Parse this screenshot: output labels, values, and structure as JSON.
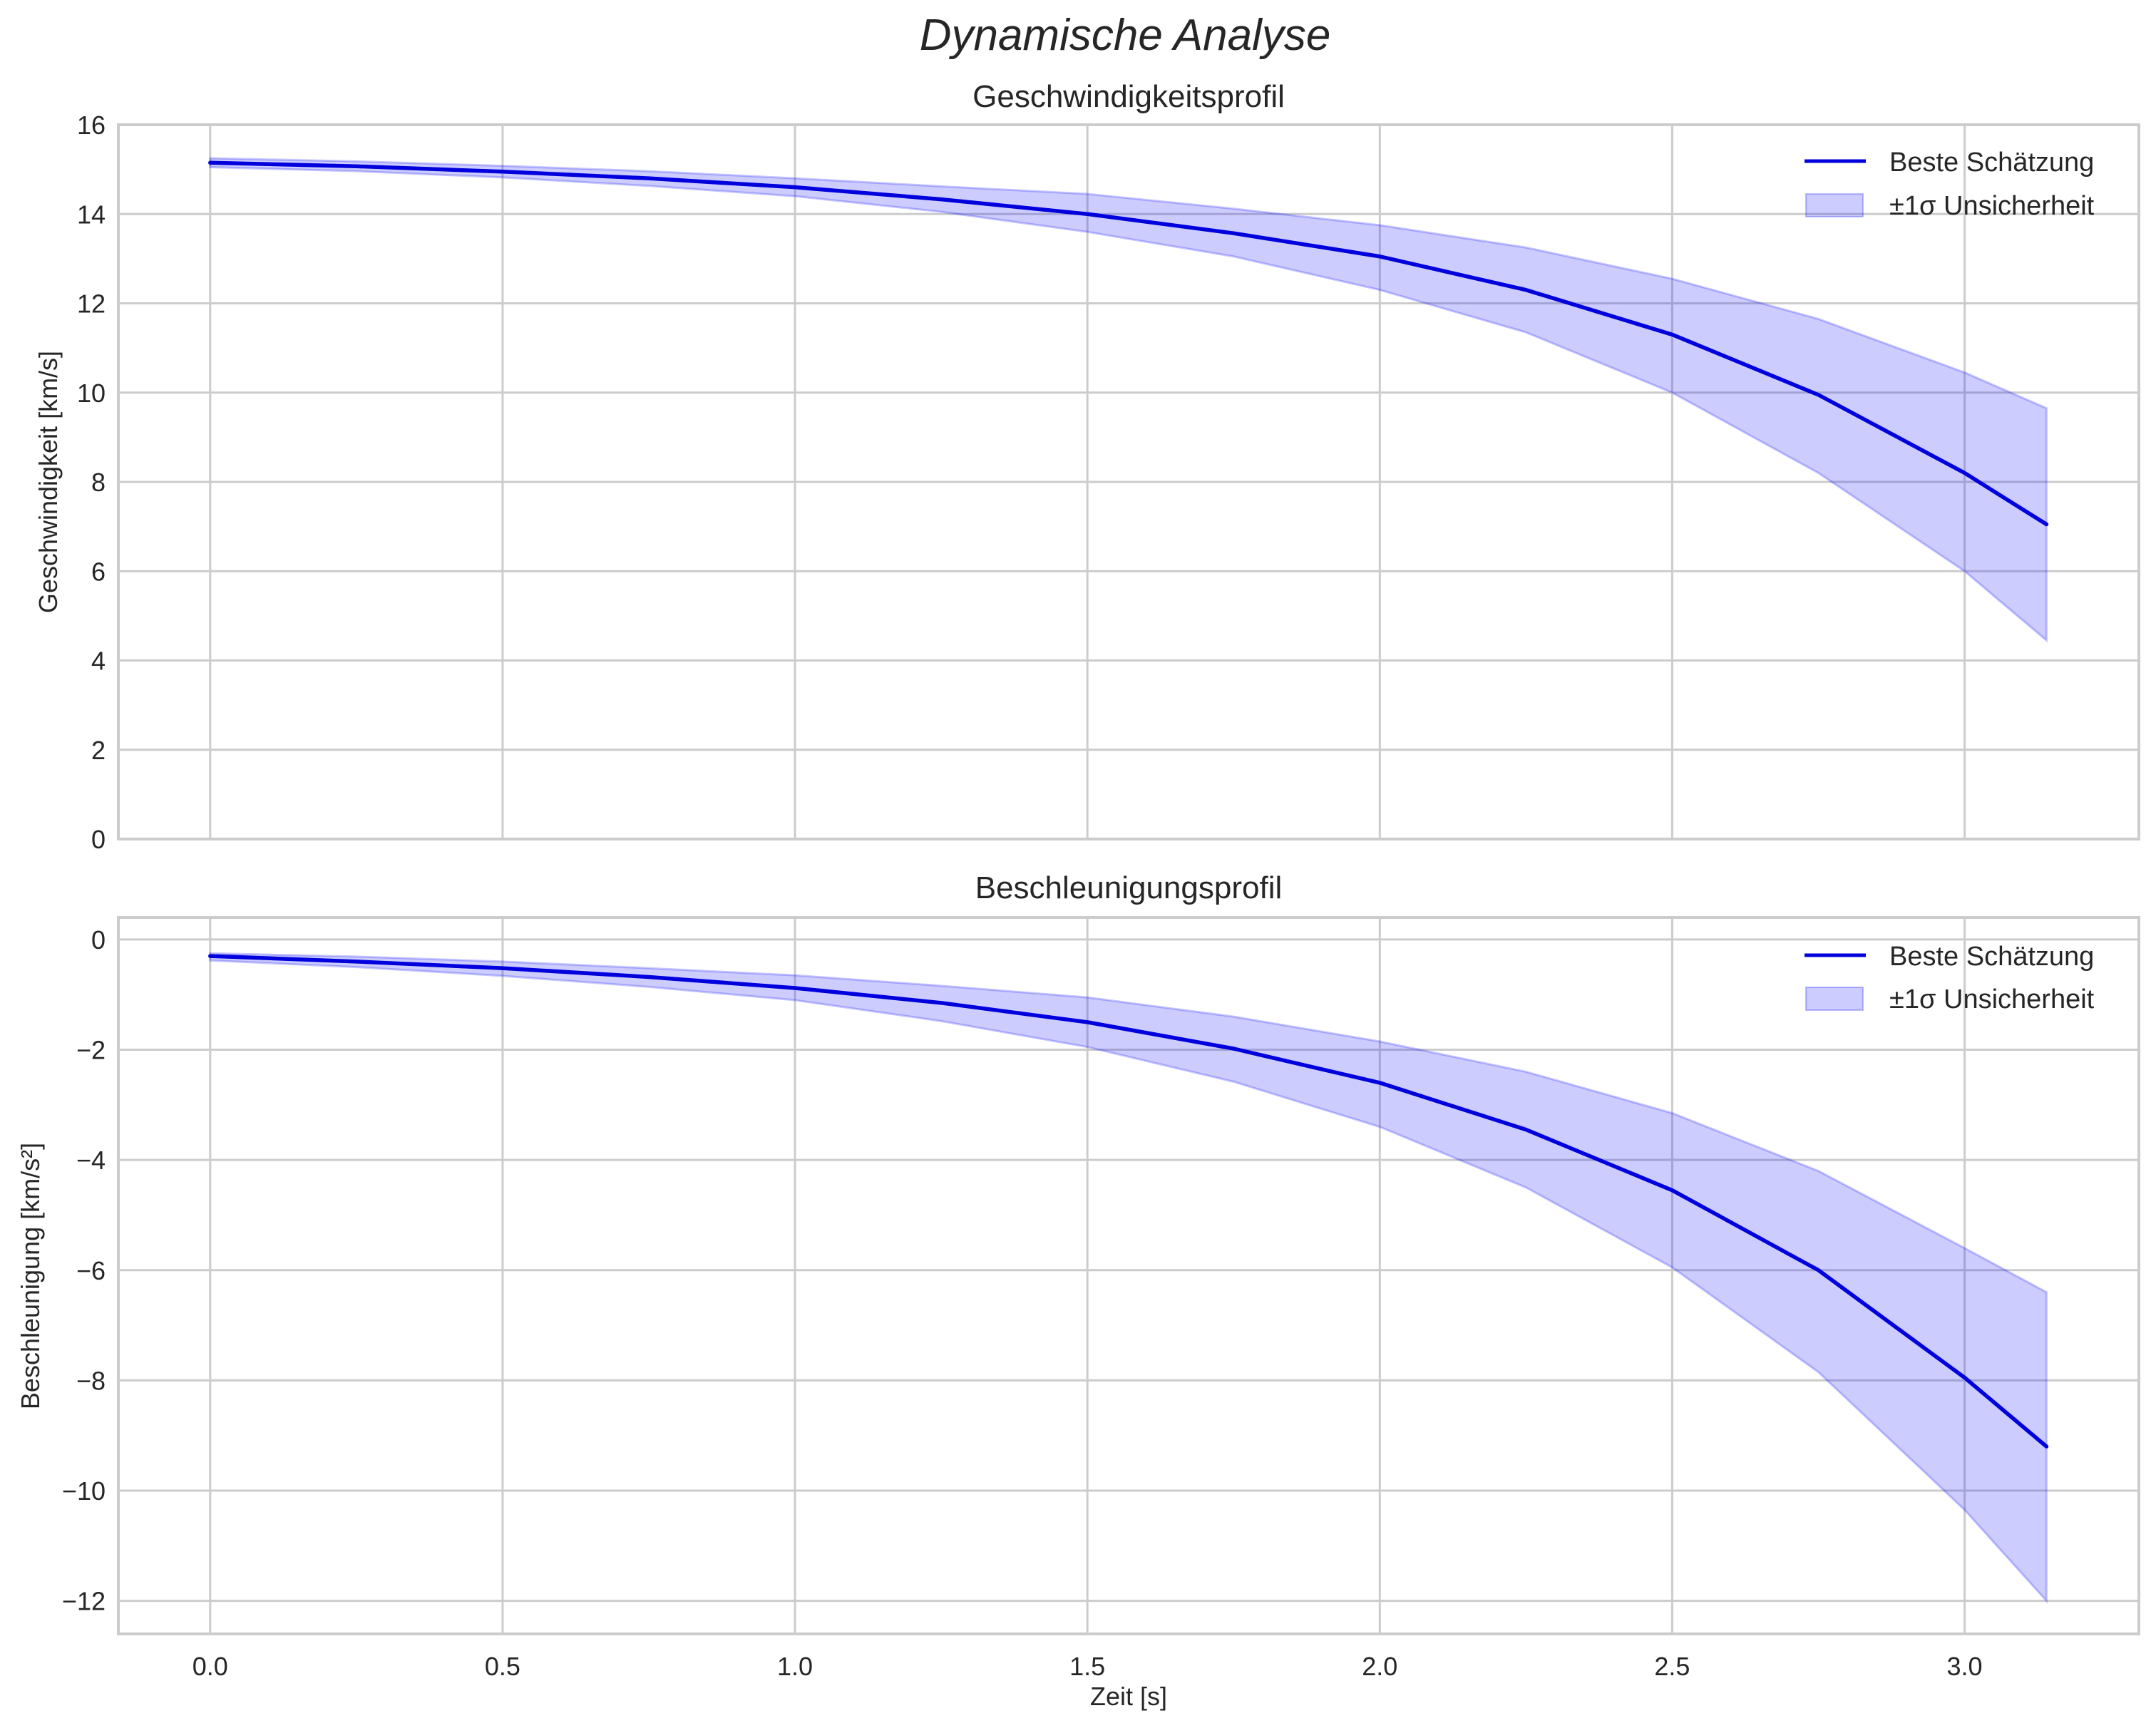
{
  "figure": {
    "suptitle": "Dynamische Analyse",
    "background": "#ffffff",
    "grid_color": "#cccccc",
    "line_color": "#0000dd",
    "band_color": "#0000ff",
    "band_alpha": 0.2
  },
  "chart_data": [
    {
      "type": "line",
      "title": "Geschwindigkeitsprofil",
      "xlabel": "",
      "ylabel": "Geschwindigkeit [km/s]",
      "xlim": [
        -0.157,
        3.298
      ],
      "ylim": [
        0,
        16
      ],
      "xticks": [
        0.0,
        0.5,
        1.0,
        1.5,
        2.0,
        2.5,
        3.0
      ],
      "xtick_labels_visible": false,
      "yticks": [
        0,
        2,
        4,
        6,
        8,
        10,
        12,
        14,
        16
      ],
      "ytick_labels": [
        "0",
        "2",
        "4",
        "6",
        "8",
        "10",
        "12",
        "14",
        "16"
      ],
      "grid": true,
      "legend_position": "upper right",
      "legend": [
        "Beste Schätzung",
        "±1σ Unsicherheit"
      ],
      "x": [
        0.0,
        0.25,
        0.5,
        0.75,
        1.0,
        1.25,
        1.5,
        1.75,
        2.0,
        2.25,
        2.5,
        2.75,
        3.0,
        3.14
      ],
      "series": [
        {
          "name": "Beste Schätzung",
          "kind": "line",
          "values": [
            15.15,
            15.07,
            14.95,
            14.8,
            14.6,
            14.33,
            14.0,
            13.57,
            13.05,
            12.3,
            11.3,
            9.95,
            8.2,
            7.05
          ]
        },
        {
          "name": "±1σ Unsicherheit",
          "kind": "band",
          "lower": [
            15.05,
            14.96,
            14.82,
            14.63,
            14.4,
            14.05,
            13.6,
            13.05,
            12.3,
            11.35,
            10.0,
            8.2,
            6.0,
            4.45
          ],
          "upper": [
            15.25,
            15.18,
            15.08,
            14.96,
            14.8,
            14.62,
            14.45,
            14.12,
            13.75,
            13.25,
            12.55,
            11.65,
            10.45,
            9.65
          ]
        }
      ]
    },
    {
      "type": "line",
      "title": "Beschleunigungsprofil",
      "xlabel": "Zeit [s]",
      "ylabel": "Beschleunigung [km/s²]",
      "xlim": [
        -0.157,
        3.298
      ],
      "ylim": [
        -12.6,
        0.4
      ],
      "xticks": [
        0.0,
        0.5,
        1.0,
        1.5,
        2.0,
        2.5,
        3.0
      ],
      "xtick_labels": [
        "0.0",
        "0.5",
        "1.0",
        "1.5",
        "2.0",
        "2.5",
        "3.0"
      ],
      "yticks": [
        0,
        -2,
        -4,
        -6,
        -8,
        -10,
        -12
      ],
      "ytick_labels": [
        "0",
        "−2",
        "−4",
        "−6",
        "−8",
        "−10",
        "−12"
      ],
      "grid": true,
      "legend_position": "upper right",
      "legend": [
        "Beste Schätzung",
        "±1σ Unsicherheit"
      ],
      "x": [
        0.0,
        0.25,
        0.5,
        0.75,
        1.0,
        1.25,
        1.5,
        1.75,
        2.0,
        2.25,
        2.5,
        2.75,
        3.0,
        3.14
      ],
      "series": [
        {
          "name": "Beste Schätzung",
          "kind": "line",
          "values": [
            -0.3,
            -0.4,
            -0.52,
            -0.68,
            -0.88,
            -1.15,
            -1.5,
            -1.98,
            -2.6,
            -3.45,
            -4.55,
            -6.0,
            -7.95,
            -9.2
          ]
        },
        {
          "name": "±1σ Unsicherheit",
          "kind": "band",
          "lower": [
            -0.38,
            -0.5,
            -0.66,
            -0.86,
            -1.1,
            -1.48,
            -1.95,
            -2.58,
            -3.4,
            -4.5,
            -5.95,
            -7.85,
            -10.35,
            -12.0
          ],
          "upper": [
            -0.25,
            -0.31,
            -0.4,
            -0.52,
            -0.65,
            -0.84,
            -1.05,
            -1.4,
            -1.85,
            -2.4,
            -3.15,
            -4.2,
            -5.6,
            -6.4
          ]
        }
      ]
    }
  ]
}
